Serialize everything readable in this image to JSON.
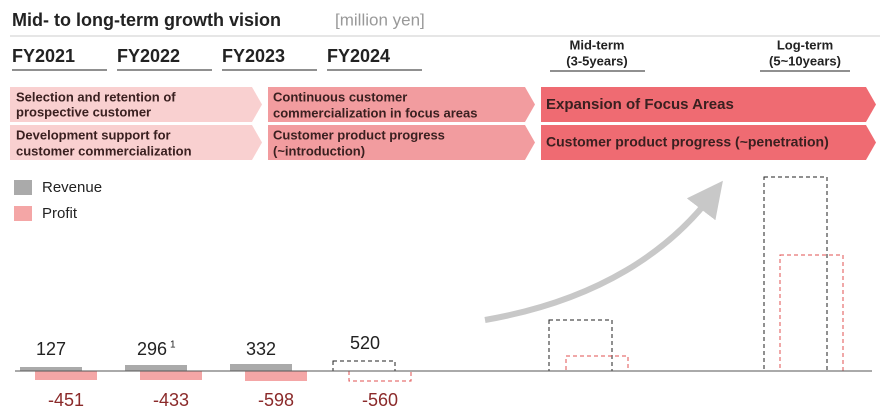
{
  "title": "Mid- to long-term growth vision",
  "unit": "[million yen]",
  "periods": [
    {
      "label": "FY2021"
    },
    {
      "label": "FY2022"
    },
    {
      "label": "FY2023"
    },
    {
      "label": "FY2024"
    },
    {
      "label": "Mid-term",
      "sublabel": "(3-5years)"
    },
    {
      "label": "Log-term",
      "sublabel": "(5~10years)"
    }
  ],
  "phases": [
    {
      "rows": [
        [
          "Selection and retention of",
          "prospective customer"
        ],
        [
          "Development support for",
          "customer commercialization"
        ]
      ]
    },
    {
      "rows": [
        [
          "Continuous customer",
          "commercialization in focus areas"
        ],
        [
          "Customer product progress",
          "(~introduction)"
        ]
      ]
    },
    {
      "rows": [
        [
          "Expansion of Focus Areas"
        ],
        [
          "Customer product progress (~penetration)"
        ]
      ]
    }
  ],
  "legend": [
    "Revenue",
    "Profit"
  ],
  "results": [
    {
      "revenue": 127,
      "profit": -451
    },
    {
      "revenue": 296,
      "note": "1",
      "profit": -433
    },
    {
      "revenue": 332,
      "profit": -598
    },
    {
      "revenue": 520,
      "profit": -560
    }
  ]
}
